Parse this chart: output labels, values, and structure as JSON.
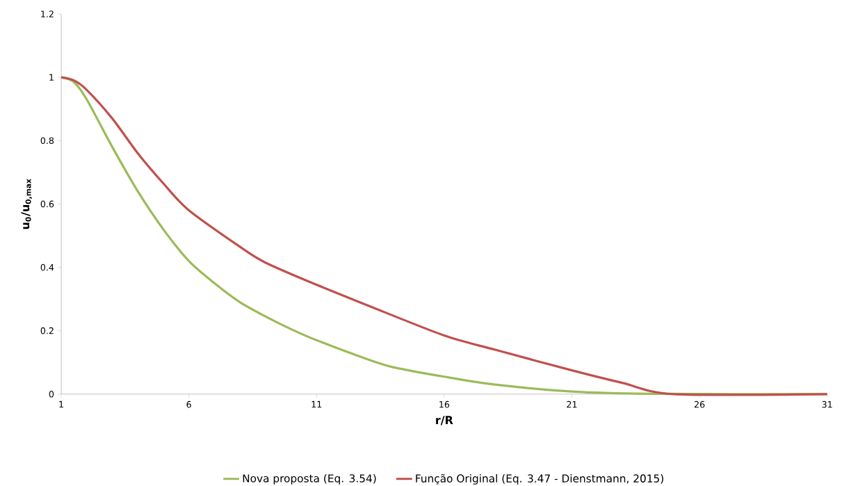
{
  "chart_data": {
    "type": "line",
    "xlabel": "r/R",
    "ylabel": "u$_{0}$/u$_{0,max}$",
    "xlim": [
      1,
      31
    ],
    "ylim": [
      0,
      1.2
    ],
    "xticks": [
      1,
      6,
      11,
      16,
      21,
      26,
      31
    ],
    "yticks": [
      0,
      0.2,
      0.4,
      0.6,
      0.8,
      1,
      1.2
    ],
    "grid": false,
    "legend": "bottom",
    "marker": "none",
    "line_style": "solid",
    "series": [
      {
        "name": "Nova proposta (Eq. 3.54)",
        "color": "#9bbb59",
        "x": [
          1,
          1.5,
          2,
          3,
          4,
          5,
          6,
          7,
          8,
          9,
          10,
          11,
          13,
          14,
          16,
          18,
          21,
          24,
          31
        ],
        "values": [
          1,
          0.985,
          0.93,
          0.78,
          0.64,
          0.52,
          0.42,
          0.35,
          0.29,
          0.245,
          0.205,
          0.17,
          0.11,
          0.085,
          0.055,
          0.03,
          0.008,
          0.001,
          0
        ]
      },
      {
        "name": "Função Original (Eq. 3.47 - Dienstmann, 2015)",
        "color": "#c0504d",
        "x": [
          1,
          1.5,
          2,
          3,
          4,
          5,
          6,
          8,
          9,
          11,
          13,
          16,
          18,
          21,
          23,
          25,
          31
        ],
        "values": [
          1,
          0.99,
          0.96,
          0.87,
          0.76,
          0.665,
          0.58,
          0.465,
          0.415,
          0.345,
          0.28,
          0.185,
          0.14,
          0.075,
          0.035,
          0,
          0
        ]
      }
    ]
  }
}
